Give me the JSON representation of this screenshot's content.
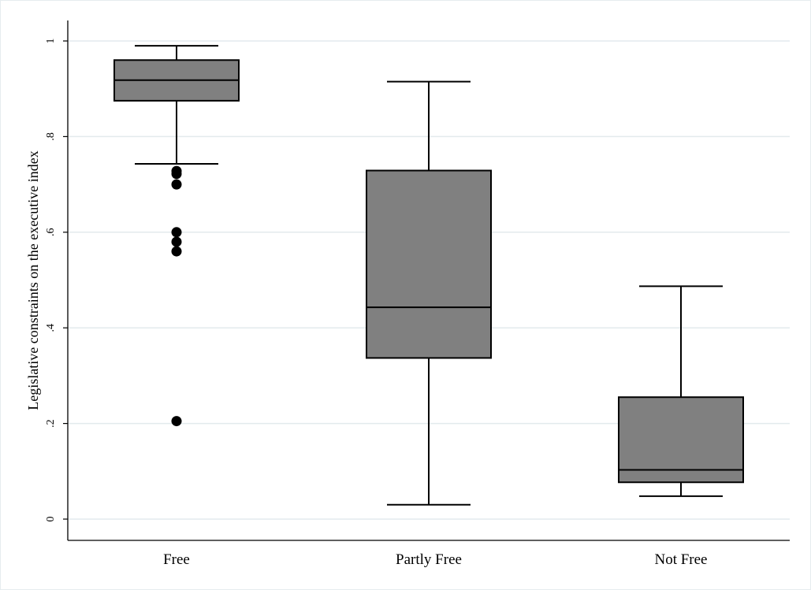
{
  "chart_data": {
    "type": "boxplot",
    "title": "",
    "xlabel": "",
    "ylabel": "Legislative constraints on the executive index",
    "ylim": [
      0,
      1
    ],
    "y_ticks": [
      0,
      0.2,
      0.4,
      0.6,
      0.8,
      1
    ],
    "y_tick_labels": [
      "0",
      ".2",
      ".4",
      ".6",
      ".8",
      "1"
    ],
    "grid": true,
    "colors": {
      "box_fill": "#808080",
      "stroke": "#000000",
      "grid": "#e3eaed",
      "outlier": "#000000"
    },
    "categories": [
      "Free",
      "Partly Free",
      "Not Free"
    ],
    "boxes": [
      {
        "category": "Free",
        "whisker_low": 0.743,
        "q1": 0.875,
        "median": 0.918,
        "q3": 0.96,
        "whisker_high": 0.99,
        "outliers": [
          0.728,
          0.722,
          0.7,
          0.6,
          0.58,
          0.56,
          0.205
        ]
      },
      {
        "category": "Partly Free",
        "whisker_low": 0.03,
        "q1": 0.337,
        "median": 0.443,
        "q3": 0.729,
        "whisker_high": 0.915,
        "outliers": []
      },
      {
        "category": "Not Free",
        "whisker_low": 0.048,
        "q1": 0.077,
        "median": 0.103,
        "q3": 0.255,
        "whisker_high": 0.487,
        "outliers": []
      }
    ]
  }
}
